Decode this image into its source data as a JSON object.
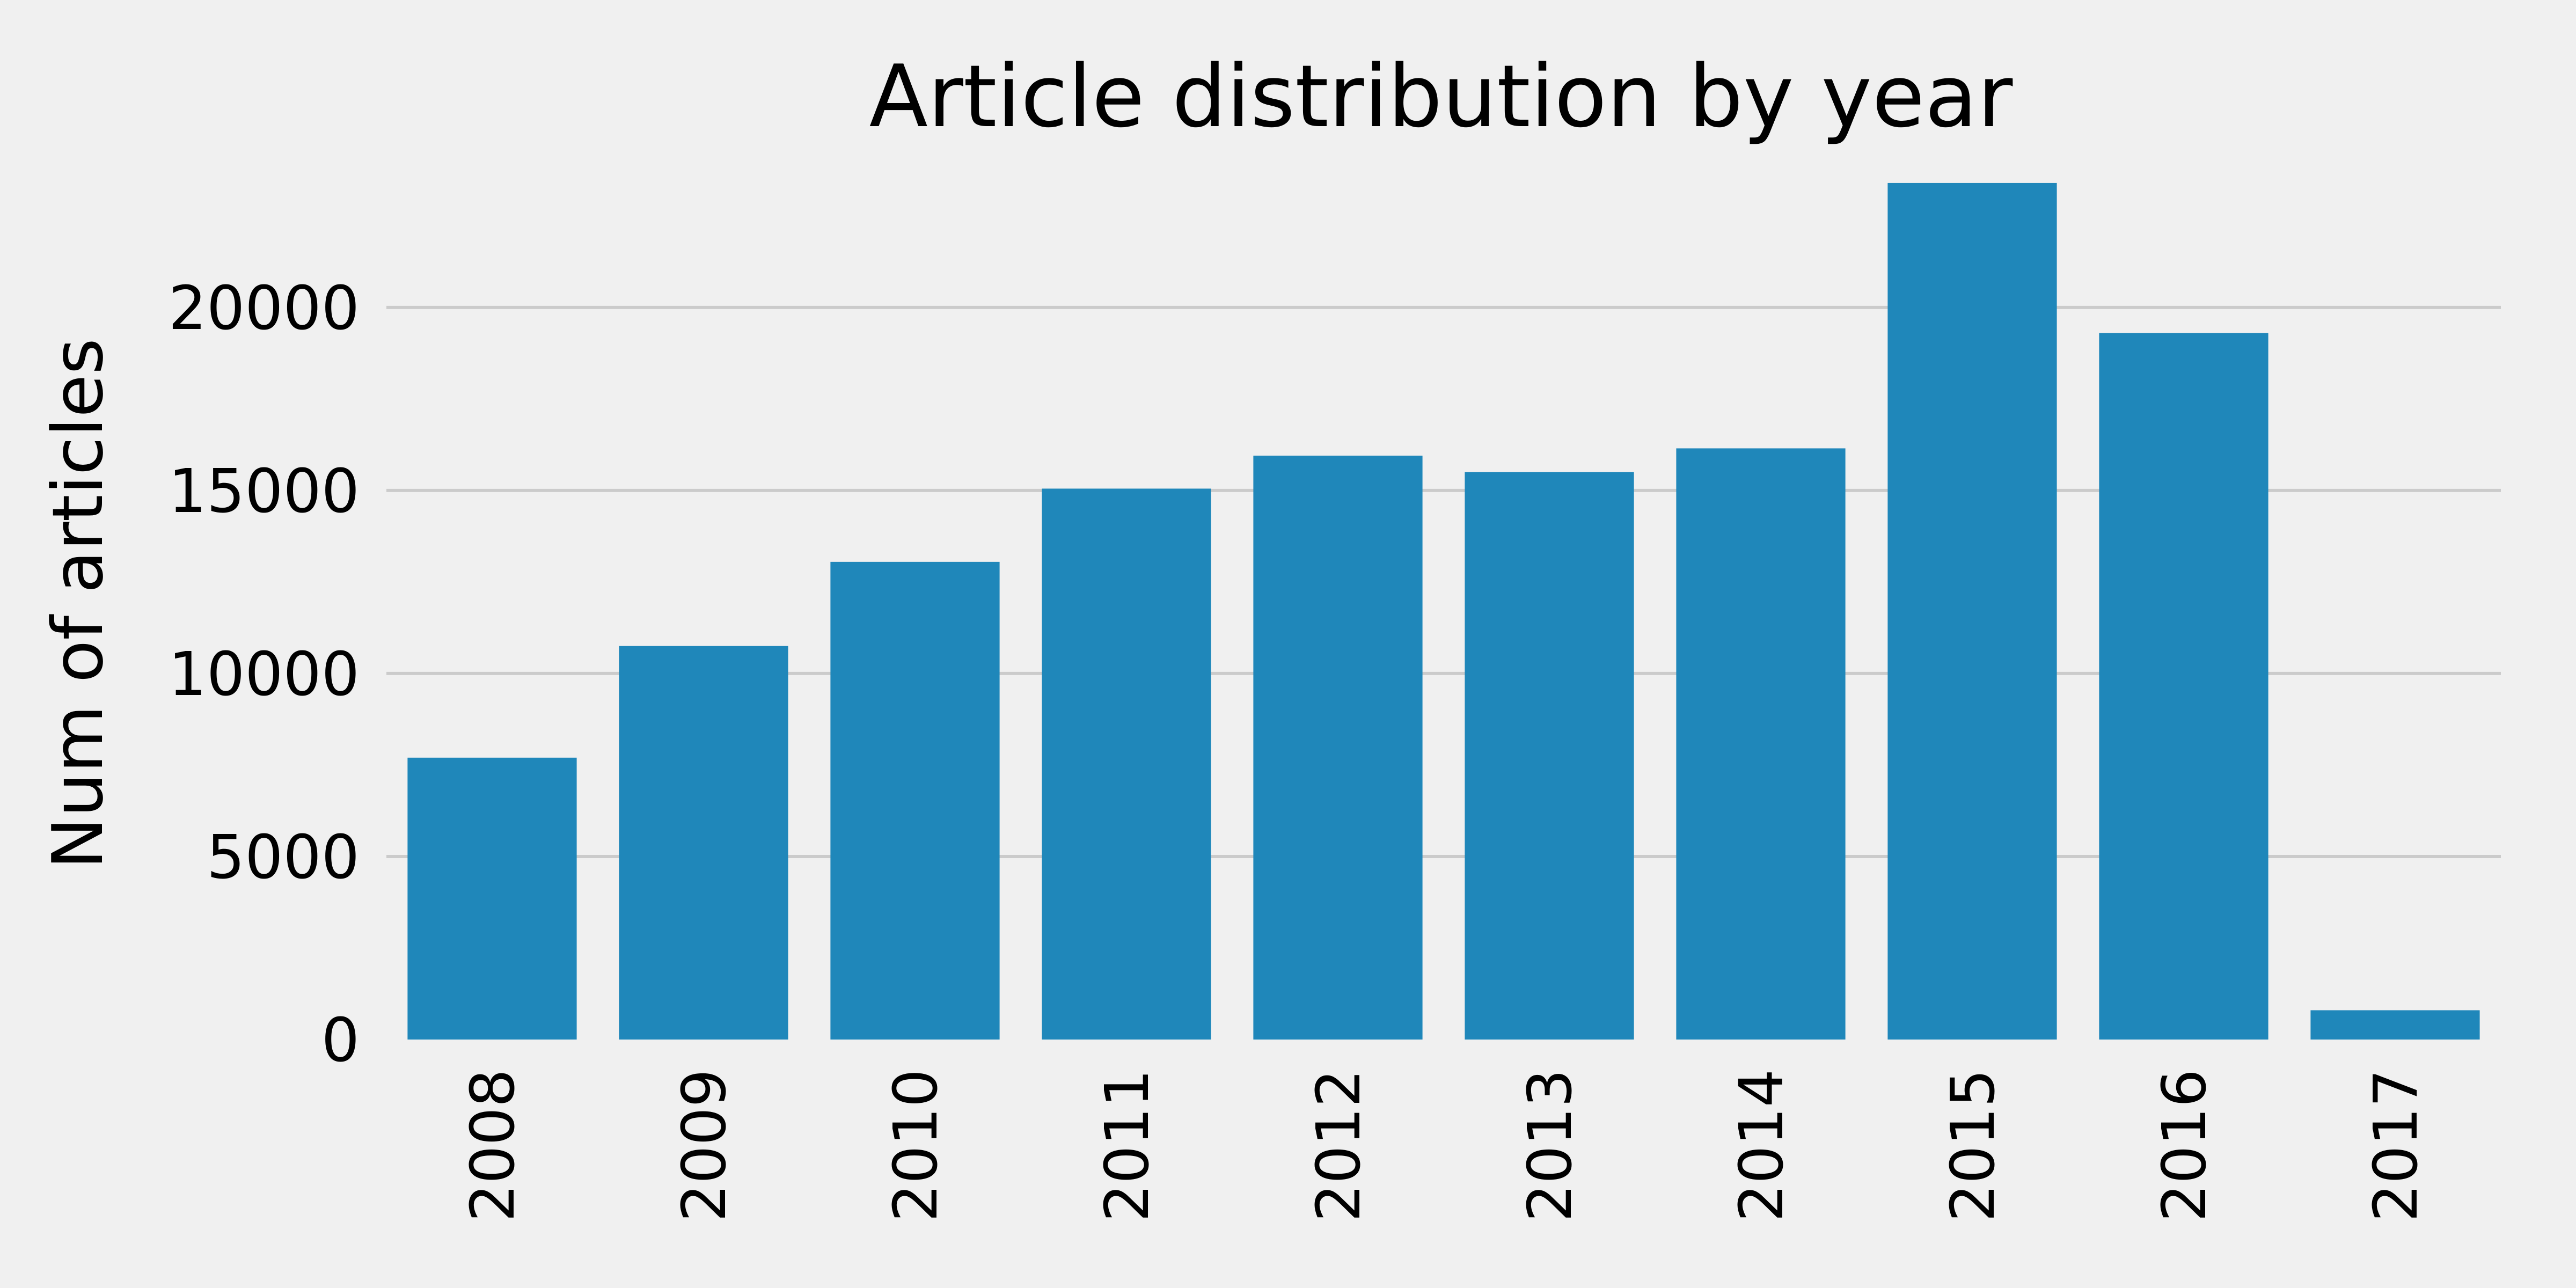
{
  "chart_data": {
    "type": "bar",
    "title": "Article distribution by year",
    "xlabel": "",
    "ylabel": "Num of articles",
    "categories": [
      "2008",
      "2009",
      "2010",
      "2011",
      "2012",
      "2013",
      "2014",
      "2015",
      "2016",
      "2017"
    ],
    "values": [
      7700,
      10750,
      13050,
      15050,
      15950,
      15500,
      16150,
      23400,
      19300,
      800
    ],
    "yticks": [
      "0",
      "5000",
      "10000",
      "15000",
      "20000"
    ],
    "ylim": [
      0,
      24000
    ],
    "grid": "horizontal",
    "legend": "none",
    "colors": {
      "bar": "#1f87ba",
      "background": "#f0f0f0",
      "grid": "#cbcbcb",
      "text": "#000000"
    }
  }
}
